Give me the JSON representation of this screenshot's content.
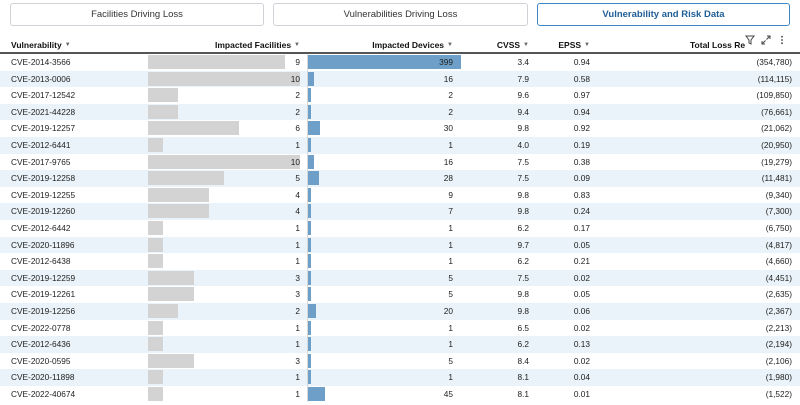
{
  "tabs": [
    "Facilities Driving Loss",
    "Vulnerabilities Driving Loss",
    "Vulnerability and Risk Data"
  ],
  "active_tab": 2,
  "toolbar_icons": [
    "filter-icon",
    "expand-icon",
    "more-icon"
  ],
  "columns": {
    "vulnerability": "Vulnerability",
    "facilities": "Impacted Facilities",
    "devices": "Impacted Devices",
    "cvss": "CVSS",
    "epss": "EPSS",
    "loss": "Total Loss Re"
  },
  "colors": {
    "accent": "#3b86c4",
    "device_bar": "#6e9fc8",
    "facility_bar": "#d3d3d3",
    "row_alt": "#e9f3f9"
  },
  "rows": [
    {
      "id": "CVE-2014-3566",
      "facilities": 9,
      "devices": 399,
      "cvss": "3.4",
      "epss": "0.94",
      "loss": "(354,780)"
    },
    {
      "id": "CVE-2013-0006",
      "facilities": 10,
      "devices": 16,
      "cvss": "7.9",
      "epss": "0.58",
      "loss": "(114,115)"
    },
    {
      "id": "CVE-2017-12542",
      "facilities": 2,
      "devices": 2,
      "cvss": "9.6",
      "epss": "0.97",
      "loss": "(109,850)"
    },
    {
      "id": "CVE-2021-44228",
      "facilities": 2,
      "devices": 2,
      "cvss": "9.4",
      "epss": "0.94",
      "loss": "(76,661)"
    },
    {
      "id": "CVE-2019-12257",
      "facilities": 6,
      "devices": 30,
      "cvss": "9.8",
      "epss": "0.92",
      "loss": "(21,062)"
    },
    {
      "id": "CVE-2012-6441",
      "facilities": 1,
      "devices": 1,
      "cvss": "4.0",
      "epss": "0.19",
      "loss": "(20,950)"
    },
    {
      "id": "CVE-2017-9765",
      "facilities": 10,
      "devices": 16,
      "cvss": "7.5",
      "epss": "0.38",
      "loss": "(19,279)"
    },
    {
      "id": "CVE-2019-12258",
      "facilities": 5,
      "devices": 28,
      "cvss": "7.5",
      "epss": "0.09",
      "loss": "(11,481)"
    },
    {
      "id": "CVE-2019-12255",
      "facilities": 4,
      "devices": 9,
      "cvss": "9.8",
      "epss": "0.83",
      "loss": "(9,340)"
    },
    {
      "id": "CVE-2019-12260",
      "facilities": 4,
      "devices": 7,
      "cvss": "9.8",
      "epss": "0.24",
      "loss": "(7,300)"
    },
    {
      "id": "CVE-2012-6442",
      "facilities": 1,
      "devices": 1,
      "cvss": "6.2",
      "epss": "0.17",
      "loss": "(6,750)"
    },
    {
      "id": "CVE-2020-11896",
      "facilities": 1,
      "devices": 1,
      "cvss": "9.7",
      "epss": "0.05",
      "loss": "(4,817)"
    },
    {
      "id": "CVE-2012-6438",
      "facilities": 1,
      "devices": 1,
      "cvss": "6.2",
      "epss": "0.21",
      "loss": "(4,660)"
    },
    {
      "id": "CVE-2019-12259",
      "facilities": 3,
      "devices": 5,
      "cvss": "7.5",
      "epss": "0.02",
      "loss": "(4,451)"
    },
    {
      "id": "CVE-2019-12261",
      "facilities": 3,
      "devices": 5,
      "cvss": "9.8",
      "epss": "0.05",
      "loss": "(2,635)"
    },
    {
      "id": "CVE-2019-12256",
      "facilities": 2,
      "devices": 20,
      "cvss": "9.8",
      "epss": "0.06",
      "loss": "(2,367)"
    },
    {
      "id": "CVE-2022-0778",
      "facilities": 1,
      "devices": 1,
      "cvss": "6.5",
      "epss": "0.02",
      "loss": "(2,213)"
    },
    {
      "id": "CVE-2012-6436",
      "facilities": 1,
      "devices": 1,
      "cvss": "6.2",
      "epss": "0.13",
      "loss": "(2,194)"
    },
    {
      "id": "CVE-2020-0595",
      "facilities": 3,
      "devices": 5,
      "cvss": "8.4",
      "epss": "0.02",
      "loss": "(2,106)"
    },
    {
      "id": "CVE-2020-11898",
      "facilities": 1,
      "devices": 1,
      "cvss": "8.1",
      "epss": "0.04",
      "loss": "(1,980)"
    },
    {
      "id": "CVE-2022-40674",
      "facilities": 1,
      "devices": 45,
      "cvss": "8.1",
      "epss": "0.01",
      "loss": "(1,522)"
    }
  ]
}
